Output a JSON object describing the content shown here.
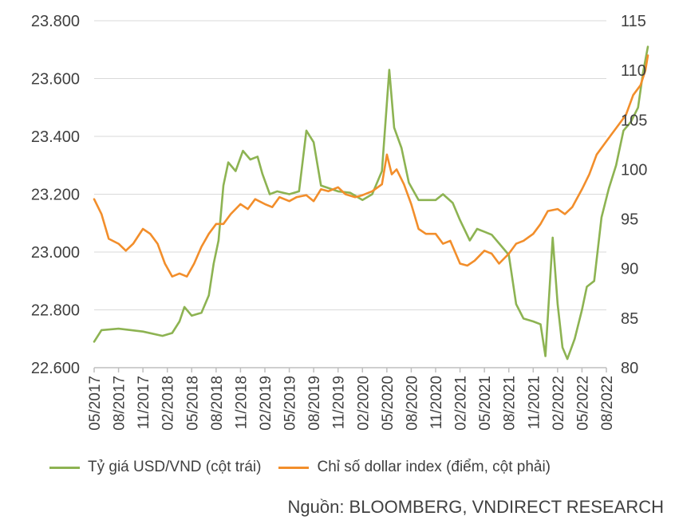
{
  "chart_data": {
    "type": "line",
    "title": "",
    "x_ticks": [
      "05/2017",
      "08/2017",
      "11/2017",
      "02/2018",
      "05/2018",
      "08/2018",
      "11/2018",
      "02/2019",
      "05/2019",
      "08/2019",
      "11/2019",
      "02/2020",
      "05/2020",
      "08/2020",
      "11/2020",
      "02/2021",
      "05/2021",
      "08/2021",
      "11/2021",
      "02/2022",
      "05/2022",
      "08/2022"
    ],
    "left_axis": {
      "ylim": [
        22600,
        23800
      ],
      "ticks": [
        22600,
        22800,
        23000,
        23200,
        23400,
        23600,
        23800
      ],
      "tick_labels": [
        "22.600",
        "22.800",
        "23.000",
        "23.200",
        "23.400",
        "23.600",
        "23.800"
      ]
    },
    "right_axis": {
      "ylim": [
        80,
        115
      ],
      "ticks": [
        80,
        85,
        90,
        95,
        100,
        105,
        110,
        115
      ],
      "tick_labels": [
        "80",
        "85",
        "90",
        "95",
        "100",
        "105",
        "110",
        "115"
      ]
    },
    "grid": true,
    "series": [
      {
        "name": "Tỷ giá USD/VND (cột trái)",
        "axis": "left",
        "color": "#8db352",
        "points": [
          [
            0,
            22690
          ],
          [
            0.3,
            22730
          ],
          [
            1,
            22735
          ],
          [
            2,
            22725
          ],
          [
            2.8,
            22710
          ],
          [
            3.2,
            22720
          ],
          [
            3.5,
            22760
          ],
          [
            3.7,
            22810
          ],
          [
            4,
            22780
          ],
          [
            4.4,
            22790
          ],
          [
            4.7,
            22850
          ],
          [
            4.9,
            22960
          ],
          [
            5.1,
            23040
          ],
          [
            5.3,
            23230
          ],
          [
            5.5,
            23310
          ],
          [
            5.8,
            23280
          ],
          [
            6.1,
            23350
          ],
          [
            6.4,
            23320
          ],
          [
            6.7,
            23330
          ],
          [
            6.9,
            23270
          ],
          [
            7.2,
            23200
          ],
          [
            7.5,
            23210
          ],
          [
            8,
            23200
          ],
          [
            8.4,
            23210
          ],
          [
            8.7,
            23420
          ],
          [
            9,
            23380
          ],
          [
            9.3,
            23230
          ],
          [
            10,
            23210
          ],
          [
            10.5,
            23205
          ],
          [
            11,
            23180
          ],
          [
            11.4,
            23200
          ],
          [
            11.8,
            23280
          ],
          [
            12.1,
            23630
          ],
          [
            12.3,
            23430
          ],
          [
            12.6,
            23360
          ],
          [
            12.9,
            23240
          ],
          [
            13.3,
            23180
          ],
          [
            14,
            23180
          ],
          [
            14.3,
            23200
          ],
          [
            14.7,
            23170
          ],
          [
            15,
            23110
          ],
          [
            15.4,
            23040
          ],
          [
            15.7,
            23080
          ],
          [
            16,
            23070
          ],
          [
            16.3,
            23060
          ],
          [
            16.6,
            23030
          ],
          [
            17,
            22990
          ],
          [
            17.3,
            22820
          ],
          [
            17.6,
            22770
          ],
          [
            18,
            22760
          ],
          [
            18.3,
            22750
          ],
          [
            18.5,
            22640
          ],
          [
            18.8,
            23050
          ],
          [
            19,
            22820
          ],
          [
            19.2,
            22670
          ],
          [
            19.4,
            22630
          ],
          [
            19.7,
            22700
          ],
          [
            20,
            22800
          ],
          [
            20.2,
            22880
          ],
          [
            20.5,
            22900
          ],
          [
            20.8,
            23120
          ],
          [
            21.1,
            23220
          ],
          [
            21.4,
            23300
          ],
          [
            21.7,
            23420
          ],
          [
            22,
            23450
          ],
          [
            22.3,
            23500
          ],
          [
            22.5,
            23620
          ],
          [
            22.7,
            23710
          ]
        ]
      },
      {
        "name": "Chỉ số dollar index (điểm, cột phải)",
        "axis": "right",
        "color": "#f28e2b",
        "points": [
          [
            0,
            97
          ],
          [
            0.3,
            95.5
          ],
          [
            0.6,
            93
          ],
          [
            1,
            92.5
          ],
          [
            1.3,
            91.8
          ],
          [
            1.6,
            92.5
          ],
          [
            2,
            94
          ],
          [
            2.3,
            93.5
          ],
          [
            2.6,
            92.5
          ],
          [
            2.9,
            90.5
          ],
          [
            3.2,
            89.2
          ],
          [
            3.5,
            89.5
          ],
          [
            3.8,
            89.2
          ],
          [
            4.1,
            90.5
          ],
          [
            4.4,
            92.2
          ],
          [
            4.7,
            93.5
          ],
          [
            5,
            94.5
          ],
          [
            5.3,
            94.5
          ],
          [
            5.6,
            95.5
          ],
          [
            6,
            96.5
          ],
          [
            6.3,
            96
          ],
          [
            6.6,
            97
          ],
          [
            7,
            96.5
          ],
          [
            7.3,
            96.2
          ],
          [
            7.6,
            97.2
          ],
          [
            8,
            96.8
          ],
          [
            8.3,
            97.2
          ],
          [
            8.7,
            97.4
          ],
          [
            9,
            96.8
          ],
          [
            9.3,
            98
          ],
          [
            9.6,
            97.8
          ],
          [
            10,
            98.2
          ],
          [
            10.3,
            97.5
          ],
          [
            10.7,
            97.2
          ],
          [
            11,
            97.4
          ],
          [
            11.4,
            97.8
          ],
          [
            11.8,
            98.5
          ],
          [
            12,
            101.5
          ],
          [
            12.2,
            99.5
          ],
          [
            12.4,
            100
          ],
          [
            12.7,
            98.5
          ],
          [
            13,
            96.5
          ],
          [
            13.3,
            94
          ],
          [
            13.6,
            93.5
          ],
          [
            14,
            93.5
          ],
          [
            14.3,
            92.5
          ],
          [
            14.6,
            92.8
          ],
          [
            15,
            90.5
          ],
          [
            15.3,
            90.3
          ],
          [
            15.6,
            90.8
          ],
          [
            16,
            91.8
          ],
          [
            16.3,
            91.5
          ],
          [
            16.6,
            90.5
          ],
          [
            17,
            91.5
          ],
          [
            17.3,
            92.5
          ],
          [
            17.6,
            92.8
          ],
          [
            18,
            93.5
          ],
          [
            18.3,
            94.5
          ],
          [
            18.6,
            95.8
          ],
          [
            19,
            96
          ],
          [
            19.3,
            95.5
          ],
          [
            19.6,
            96.2
          ],
          [
            20,
            98
          ],
          [
            20.3,
            99.5
          ],
          [
            20.6,
            101.5
          ],
          [
            20.9,
            102.5
          ],
          [
            21.2,
            103.5
          ],
          [
            21.5,
            104.5
          ],
          [
            21.8,
            105.5
          ],
          [
            22.1,
            107.5
          ],
          [
            22.4,
            108.5
          ],
          [
            22.6,
            110
          ],
          [
            22.7,
            111.5
          ]
        ]
      }
    ],
    "legend_position": "bottom"
  },
  "legend": {
    "series1": "Tỷ giá USD/VND (cột trái)",
    "series2": "Chỉ số dollar index (điểm, cột phải)"
  },
  "source": "Nguồn: BLOOMBERG, VNDIRECT RESEARCH",
  "colors": {
    "green": "#8db352",
    "orange": "#f28e2b",
    "grid": "#d9d9d9",
    "axis": "#bfbfbf"
  }
}
